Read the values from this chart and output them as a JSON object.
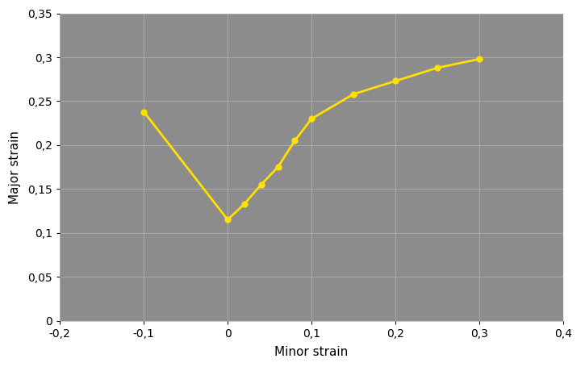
{
  "x": [
    -0.1,
    0.0,
    0.02,
    0.04,
    0.06,
    0.08,
    0.1,
    0.15,
    0.2,
    0.25,
    0.3
  ],
  "y": [
    0.238,
    0.115,
    0.133,
    0.155,
    0.175,
    0.205,
    0.23,
    0.258,
    0.273,
    0.288,
    0.298
  ],
  "line_color": "#FFE000",
  "marker_color": "#FFE000",
  "marker_size": 5,
  "line_width": 2.0,
  "background_color": "#ffffff",
  "plot_area_color": "#8c8c8c",
  "xlabel": "Minor strain",
  "ylabel": "Major strain",
  "xlim": [
    -0.2,
    0.4
  ],
  "ylim": [
    0,
    0.35
  ],
  "xticks": [
    -0.2,
    -0.1,
    0.0,
    0.1,
    0.2,
    0.3,
    0.4
  ],
  "yticks": [
    0,
    0.05,
    0.1,
    0.15,
    0.2,
    0.25,
    0.3,
    0.35
  ],
  "grid_color": "#aaaaaa",
  "tick_label_color": "#000000",
  "axis_label_color": "#000000",
  "font_size_ticks": 10,
  "font_size_labels": 11
}
